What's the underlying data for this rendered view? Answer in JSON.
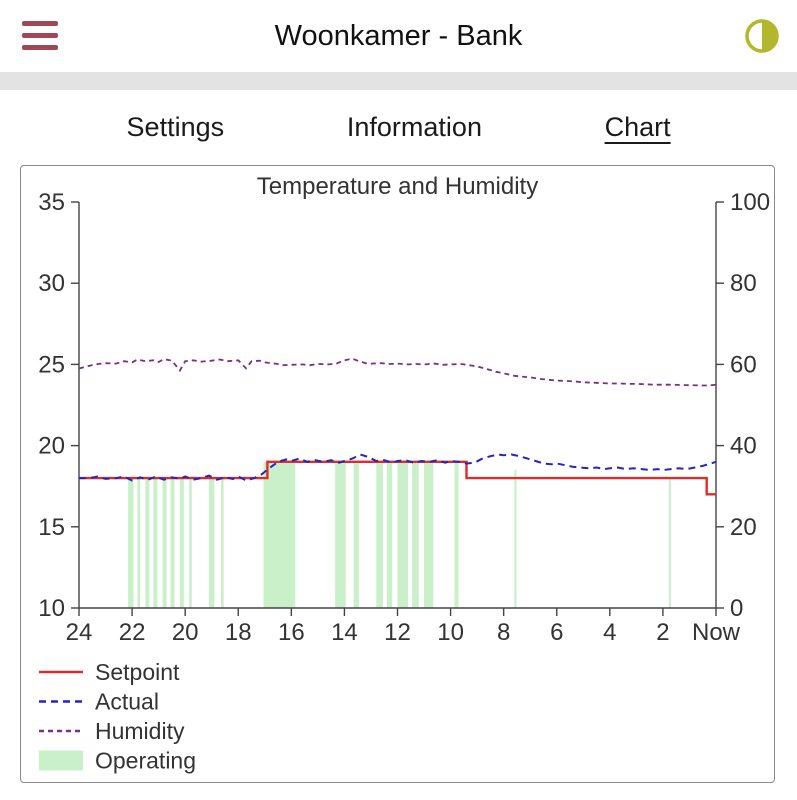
{
  "header": {
    "title": "Woonkamer - Bank"
  },
  "icons": {
    "menu": "hamburger-menu",
    "theme": "half-filled-circle-contrast",
    "theme_color": "#b2b72b",
    "menu_color": "#a04858"
  },
  "tabs": [
    {
      "label": "Settings",
      "active": false
    },
    {
      "label": "Information",
      "active": false
    },
    {
      "label": "Chart",
      "active": true
    }
  ],
  "chart_data": {
    "type": "line",
    "title": "Temperature and Humidity",
    "x_axis": {
      "unit": "hours ago",
      "range": [
        24,
        0
      ],
      "ticks": [
        24,
        22,
        20,
        18,
        16,
        14,
        12,
        10,
        8,
        6,
        4,
        2,
        0
      ],
      "tick_labels": [
        "24",
        "22",
        "20",
        "18",
        "16",
        "14",
        "12",
        "10",
        "8",
        "6",
        "4",
        "2",
        "Now"
      ]
    },
    "y_left": {
      "name": "temperature",
      "range": [
        10,
        35
      ],
      "ticks": [
        10,
        15,
        20,
        25,
        30,
        35
      ]
    },
    "y_right": {
      "name": "humidity",
      "range": [
        0,
        100
      ],
      "ticks": [
        0,
        20,
        40,
        60,
        80,
        100
      ]
    },
    "series": [
      {
        "name": "Setpoint",
        "axis": "left",
        "color": "#e02b2b",
        "style": "solid",
        "width": 2.4,
        "points": [
          [
            24,
            18
          ],
          [
            16.9,
            18
          ],
          [
            16.9,
            19
          ],
          [
            9.4,
            19
          ],
          [
            9.4,
            18
          ],
          [
            0.35,
            18
          ],
          [
            0.35,
            17
          ],
          [
            0,
            17
          ]
        ]
      },
      {
        "name": "Actual",
        "axis": "left",
        "color": "#2323c8",
        "style": "dashed",
        "dash": [
          7,
          5
        ],
        "width": 2,
        "points": [
          [
            24,
            18
          ],
          [
            23.6,
            18
          ],
          [
            23.3,
            18.1
          ],
          [
            23,
            17.95
          ],
          [
            22.6,
            18
          ],
          [
            22.3,
            18.1
          ],
          [
            22,
            17.85
          ],
          [
            21.7,
            18.05
          ],
          [
            21.4,
            17.9
          ],
          [
            21.1,
            18.1
          ],
          [
            20.8,
            17.9
          ],
          [
            20.5,
            18.05
          ],
          [
            20.2,
            17.95
          ],
          [
            20,
            18.1
          ],
          [
            19.7,
            17.9
          ],
          [
            19.4,
            18
          ],
          [
            19.1,
            18.15
          ],
          [
            18.8,
            17.9
          ],
          [
            18.5,
            18.05
          ],
          [
            18.2,
            17.95
          ],
          [
            18,
            18.1
          ],
          [
            17.7,
            17.85
          ],
          [
            17.4,
            18
          ],
          [
            17.1,
            18.25
          ],
          [
            16.8,
            18.65
          ],
          [
            16.5,
            19
          ],
          [
            16.2,
            19.15
          ],
          [
            16,
            19.05
          ],
          [
            15.7,
            19.2
          ],
          [
            15.4,
            19
          ],
          [
            15.1,
            19.1
          ],
          [
            14.8,
            19
          ],
          [
            14.5,
            19.1
          ],
          [
            14.2,
            18.95
          ],
          [
            14,
            19.05
          ],
          [
            13.7,
            19.2
          ],
          [
            13.4,
            19.45
          ],
          [
            13.1,
            19.3
          ],
          [
            12.8,
            19.05
          ],
          [
            12.5,
            19.1
          ],
          [
            12.2,
            18.95
          ],
          [
            12,
            19.05
          ],
          [
            11.7,
            19.1
          ],
          [
            11.4,
            18.95
          ],
          [
            11.1,
            19.05
          ],
          [
            10.8,
            19
          ],
          [
            10.5,
            19.1
          ],
          [
            10.2,
            18.95
          ],
          [
            10,
            19.05
          ],
          [
            9.7,
            19
          ],
          [
            9.4,
            18.9
          ],
          [
            9.1,
            18.95
          ],
          [
            8.8,
            19.2
          ],
          [
            8.5,
            19.35
          ],
          [
            8.2,
            19.45
          ],
          [
            8,
            19.4
          ],
          [
            7.7,
            19.45
          ],
          [
            7.4,
            19.35
          ],
          [
            7.1,
            19.2
          ],
          [
            6.8,
            19.05
          ],
          [
            6.5,
            18.9
          ],
          [
            6.2,
            18.85
          ],
          [
            6,
            18.9
          ],
          [
            5.7,
            18.8
          ],
          [
            5.4,
            18.7
          ],
          [
            5.1,
            18.65
          ],
          [
            4.8,
            18.6
          ],
          [
            4.5,
            18.65
          ],
          [
            4.2,
            18.55
          ],
          [
            4,
            18.6
          ],
          [
            3.7,
            18.65
          ],
          [
            3.4,
            18.55
          ],
          [
            3.1,
            18.6
          ],
          [
            2.8,
            18.55
          ],
          [
            2.5,
            18.5
          ],
          [
            2.2,
            18.55
          ],
          [
            2,
            18.5
          ],
          [
            1.7,
            18.55
          ],
          [
            1.4,
            18.6
          ],
          [
            1.1,
            18.55
          ],
          [
            0.8,
            18.65
          ],
          [
            0.5,
            18.75
          ],
          [
            0.2,
            18.9
          ],
          [
            0,
            19
          ]
        ]
      },
      {
        "name": "Humidity",
        "axis": "right",
        "color": "#7b2d8b",
        "style": "dashed",
        "dash": [
          5,
          4
        ],
        "width": 1.8,
        "points": [
          [
            24,
            59
          ],
          [
            23.7,
            59.5
          ],
          [
            23.4,
            60
          ],
          [
            23,
            60.3
          ],
          [
            22.6,
            60.2
          ],
          [
            22.3,
            60.8
          ],
          [
            22,
            60.5
          ],
          [
            21.8,
            61.2
          ],
          [
            21.5,
            60.8
          ],
          [
            21.2,
            61
          ],
          [
            21,
            60.6
          ],
          [
            20.8,
            61.3
          ],
          [
            20.5,
            60.9
          ],
          [
            20.2,
            58.5
          ],
          [
            20,
            60.8
          ],
          [
            19.7,
            61
          ],
          [
            19.4,
            60.7
          ],
          [
            19,
            60.9
          ],
          [
            18.7,
            61.2
          ],
          [
            18.4,
            60.8
          ],
          [
            18,
            61
          ],
          [
            17.7,
            59
          ],
          [
            17.5,
            60.8
          ],
          [
            17.2,
            60.9
          ],
          [
            17,
            60.5
          ],
          [
            16.6,
            60.2
          ],
          [
            16.3,
            59.8
          ],
          [
            16,
            59.9
          ],
          [
            15.6,
            60
          ],
          [
            15.3,
            59.8
          ],
          [
            15,
            60.1
          ],
          [
            14.6,
            60
          ],
          [
            14.3,
            60.2
          ],
          [
            14,
            61
          ],
          [
            13.7,
            61.4
          ],
          [
            13.5,
            60.9
          ],
          [
            13.2,
            60.3
          ],
          [
            13,
            60.2
          ],
          [
            12.6,
            60.3
          ],
          [
            12.3,
            60.1
          ],
          [
            12,
            60.2
          ],
          [
            11.6,
            60
          ],
          [
            11.3,
            60.1
          ],
          [
            11,
            60
          ],
          [
            10.6,
            60.2
          ],
          [
            10.3,
            59.9
          ],
          [
            10,
            60
          ],
          [
            9.6,
            60.1
          ],
          [
            9.3,
            59.8
          ],
          [
            9,
            59.5
          ],
          [
            8.6,
            58.8
          ],
          [
            8.3,
            58.2
          ],
          [
            8,
            57.8
          ],
          [
            7.6,
            57.2
          ],
          [
            7.3,
            57
          ],
          [
            7,
            56.8
          ],
          [
            6.6,
            56.4
          ],
          [
            6.3,
            56.2
          ],
          [
            6,
            56
          ],
          [
            5.6,
            55.9
          ],
          [
            5.3,
            55.8
          ],
          [
            5,
            55.6
          ],
          [
            4.6,
            55.5
          ],
          [
            4.3,
            55.4
          ],
          [
            4,
            55.3
          ],
          [
            3.6,
            55.3
          ],
          [
            3.3,
            55.2
          ],
          [
            3,
            55.2
          ],
          [
            2.6,
            55.1
          ],
          [
            2.3,
            55
          ],
          [
            2,
            55
          ],
          [
            1.6,
            55
          ],
          [
            1.3,
            54.9
          ],
          [
            1,
            54.9
          ],
          [
            0.6,
            54.8
          ],
          [
            0.3,
            54.8
          ],
          [
            0,
            55
          ]
        ]
      }
    ],
    "operating": {
      "name": "Operating",
      "color": "#c9f0c9",
      "intervals": [
        [
          22.15,
          21.95,
          18
        ],
        [
          21.8,
          21.7,
          18
        ],
        [
          21.5,
          21.35,
          18
        ],
        [
          21.2,
          21.05,
          18
        ],
        [
          20.85,
          20.7,
          18
        ],
        [
          20.55,
          20.4,
          18
        ],
        [
          20.2,
          20.05,
          18
        ],
        [
          19.85,
          19.75,
          18
        ],
        [
          19.1,
          18.9,
          18
        ],
        [
          18.65,
          18.55,
          18
        ],
        [
          17.05,
          15.85,
          19
        ],
        [
          14.35,
          13.95,
          19
        ],
        [
          13.65,
          13.45,
          19
        ],
        [
          12.8,
          12.55,
          19
        ],
        [
          12.4,
          12.2,
          19
        ],
        [
          12.0,
          11.6,
          19
        ],
        [
          11.45,
          11.2,
          19
        ],
        [
          11.0,
          10.65,
          19
        ],
        [
          9.85,
          9.7,
          19
        ],
        [
          7.6,
          7.52,
          18.5
        ],
        [
          1.78,
          1.7,
          18
        ]
      ]
    },
    "legend": [
      {
        "label": "Setpoint",
        "swatch": "line-solid",
        "color": "#e02b2b"
      },
      {
        "label": "Actual",
        "swatch": "line-dashed",
        "color": "#2323c8",
        "dash": [
          7,
          5
        ]
      },
      {
        "label": "Humidity",
        "swatch": "line-dashed",
        "color": "#7b2d8b",
        "dash": [
          5,
          4
        ]
      },
      {
        "label": "Operating",
        "swatch": "fill",
        "color": "#c9f0c9"
      }
    ],
    "layout_hints": {
      "grid": false,
      "legend_position": "bottom-left",
      "dual_y_axis": true
    }
  }
}
